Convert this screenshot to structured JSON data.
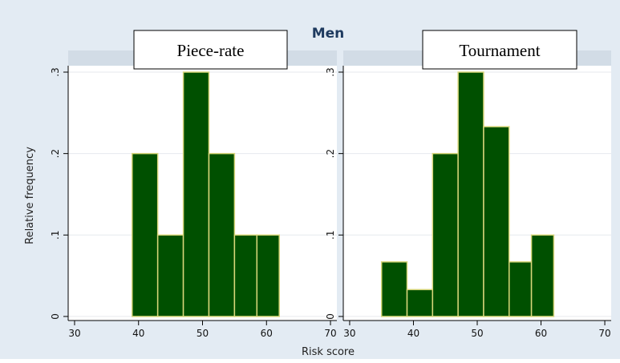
{
  "title": "Men",
  "colors": {
    "background": "#e3ebf3",
    "strip": "#d2dce6",
    "plot": "#ffffff",
    "bar_fill": "#005000",
    "bar_stroke": "#d8d67a",
    "title": "#1e3a5f",
    "grid": "#e6eaee"
  },
  "chart_data": [
    {
      "type": "bar",
      "title": "Piece-rate",
      "xlabel": "Risk score",
      "ylabel": "Relative frequency",
      "xlim": [
        29,
        71
      ],
      "ylim": [
        -0.005,
        0.3
      ],
      "xticks": [
        30,
        40,
        50,
        60,
        70
      ],
      "yticks": [
        0,
        0.1,
        0.2,
        0.3
      ],
      "ytick_labels": [
        "0",
        ".1",
        ".2",
        ".3"
      ],
      "grid": true,
      "bins": [
        {
          "x0": 39,
          "x1": 43,
          "value": 0.2
        },
        {
          "x0": 43,
          "x1": 47,
          "value": 0.1
        },
        {
          "x0": 47,
          "x1": 51,
          "value": 0.3
        },
        {
          "x0": 51,
          "x1": 55,
          "value": 0.2
        },
        {
          "x0": 55,
          "x1": 58.5,
          "value": 0.1
        },
        {
          "x0": 58.5,
          "x1": 62,
          "value": 0.1
        }
      ]
    },
    {
      "type": "bar",
      "title": "Tournament",
      "xlabel": "Risk score",
      "ylabel": "",
      "xlim": [
        29,
        71
      ],
      "ylim": [
        -0.005,
        0.3
      ],
      "xticks": [
        30,
        40,
        50,
        60,
        70
      ],
      "yticks": [
        0,
        0.1,
        0.2,
        0.3
      ],
      "ytick_labels": [
        "0",
        ".1",
        ".2",
        ".3"
      ],
      "grid": true,
      "bins": [
        {
          "x0": 35,
          "x1": 39,
          "value": 0.067
        },
        {
          "x0": 39,
          "x1": 43,
          "value": 0.033
        },
        {
          "x0": 43,
          "x1": 47,
          "value": 0.2
        },
        {
          "x0": 47,
          "x1": 51,
          "value": 0.3
        },
        {
          "x0": 51,
          "x1": 55,
          "value": 0.233
        },
        {
          "x0": 55,
          "x1": 58.5,
          "value": 0.067
        },
        {
          "x0": 58.5,
          "x1": 62,
          "value": 0.1
        }
      ]
    }
  ]
}
